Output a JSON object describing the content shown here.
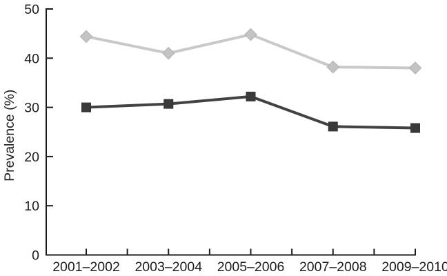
{
  "figure": {
    "background_color": "#ffffff",
    "axis_color": "#1c1c1c",
    "text_color": "#1c1c1c"
  },
  "chart_data": {
    "type": "line",
    "title": "",
    "xlabel": "",
    "ylabel": "Prevalence (%)",
    "categories": [
      "2001–2002",
      "2003–2004",
      "2005–2006",
      "2007–2008",
      "2009–2010"
    ],
    "series": [
      {
        "name": "upper-series",
        "marker": "diamond",
        "line_color": "#c9c9c9",
        "marker_fill": "#c3c3c3",
        "marker_stroke": "#b0b0b0",
        "values": [
          44.4,
          41.0,
          44.8,
          38.2,
          38.0
        ]
      },
      {
        "name": "lower-series",
        "marker": "square",
        "line_color": "#424242",
        "marker_fill": "#3a3a3a",
        "marker_stroke": "#333333",
        "values": [
          30.0,
          30.7,
          32.2,
          26.1,
          25.8
        ]
      }
    ],
    "ylim": [
      0,
      50
    ],
    "yticks": [
      0,
      10,
      20,
      30,
      40,
      50
    ],
    "grid": false,
    "legend_position": "none",
    "minor_x_ticks_between_categories": true
  }
}
